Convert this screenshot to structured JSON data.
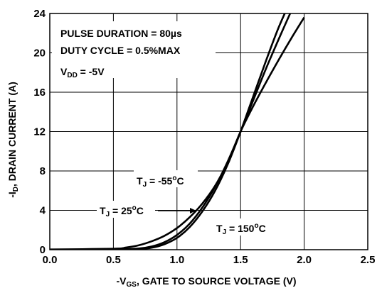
{
  "chart_data": {
    "type": "line",
    "title": "",
    "xlabel": {
      "prefix": "-V",
      "sub": "GS",
      "rest": ", GATE TO SOURCE VOLTAGE (V)"
    },
    "ylabel": {
      "prefix": "-I",
      "sub": "D",
      "rest": ", DRAIN CURRENT (A)"
    },
    "xlim": [
      0,
      2.5
    ],
    "ylim": [
      0,
      24
    ],
    "xticks": [
      0,
      0.5,
      1.0,
      1.5,
      2.0,
      2.5
    ],
    "xtick_labels": [
      "0.0",
      "0.5",
      "1.0",
      "1.5",
      "2.0",
      "2.5"
    ],
    "yticks": [
      0,
      4,
      8,
      12,
      16,
      20,
      24
    ],
    "ytick_labels": [
      "0",
      "4",
      "8",
      "12",
      "16",
      "20",
      "24"
    ],
    "grid": true,
    "annotations": {
      "pulse": "PULSE DURATION = 80µs",
      "duty": "DUTY CYCLE = 0.5%MAX",
      "vdd": {
        "prefix": "V",
        "sub": "DD",
        "rest": " = -5V"
      }
    },
    "series": [
      {
        "name": "T_J = -55°C",
        "label": {
          "prefix": "T",
          "sub": "J",
          "rest": " = -55",
          "sup": "o",
          "unit": "C"
        },
        "x": [
          0.0,
          0.5,
          0.7,
          0.8,
          0.9,
          1.0,
          1.1,
          1.2,
          1.3,
          1.4,
          1.5,
          1.6,
          1.7,
          1.8,
          1.9
        ],
        "y": [
          0.0,
          0.02,
          0.08,
          0.2,
          0.55,
          1.2,
          2.3,
          3.9,
          6.0,
          8.7,
          12.0,
          15.6,
          19.2,
          22.6,
          25.5
        ]
      },
      {
        "name": "T_J = 25°C",
        "label": {
          "prefix": "T",
          "sub": "J",
          "rest": " = 25",
          "sup": "o",
          "unit": "C"
        },
        "x": [
          0.0,
          0.5,
          0.7,
          0.8,
          0.9,
          1.0,
          1.1,
          1.2,
          1.3,
          1.4,
          1.5,
          1.6,
          1.7,
          1.8,
          1.9
        ],
        "y": [
          0.0,
          0.03,
          0.12,
          0.32,
          0.75,
          1.5,
          2.65,
          4.3,
          6.4,
          9.0,
          12.0,
          15.2,
          18.4,
          21.4,
          24.3
        ]
      },
      {
        "name": "T_J = 150°C",
        "label": {
          "prefix": "T",
          "sub": "J",
          "rest": " = 150",
          "sup": "o",
          "unit": "C"
        },
        "x": [
          0.0,
          0.5,
          0.6,
          0.7,
          0.8,
          0.9,
          1.0,
          1.1,
          1.2,
          1.3,
          1.4,
          1.5,
          1.6,
          1.7,
          1.8,
          1.9,
          2.0
        ],
        "y": [
          0.02,
          0.1,
          0.22,
          0.45,
          0.85,
          1.4,
          2.2,
          3.3,
          4.7,
          6.5,
          8.9,
          12.0,
          14.6,
          17.0,
          19.3,
          21.5,
          23.6
        ]
      }
    ]
  }
}
